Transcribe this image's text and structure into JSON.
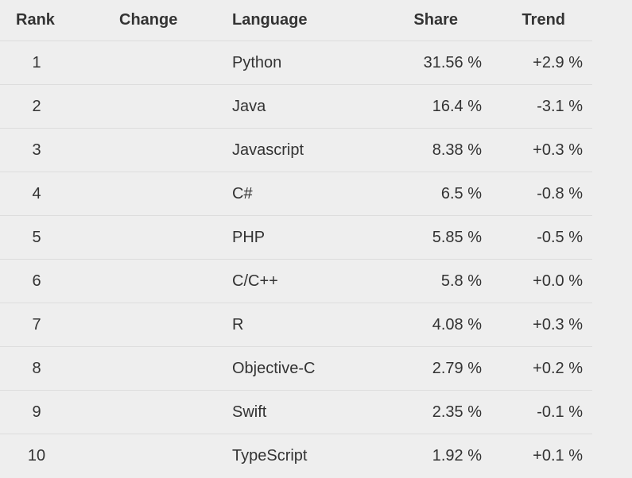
{
  "table": {
    "headers": {
      "rank": "Rank",
      "change": "Change",
      "language": "Language",
      "share": "Share",
      "trend": "Trend"
    },
    "rows": [
      {
        "rank": "1",
        "change": "",
        "language": "Python",
        "share": "31.56 %",
        "trend": "+2.9 %"
      },
      {
        "rank": "2",
        "change": "",
        "language": "Java",
        "share": "16.4 %",
        "trend": "-3.1 %"
      },
      {
        "rank": "3",
        "change": "",
        "language": "Javascript",
        "share": "8.38 %",
        "trend": "+0.3 %"
      },
      {
        "rank": "4",
        "change": "",
        "language": "C#",
        "share": "6.5 %",
        "trend": "-0.8 %"
      },
      {
        "rank": "5",
        "change": "",
        "language": "PHP",
        "share": "5.85 %",
        "trend": "-0.5 %"
      },
      {
        "rank": "6",
        "change": "",
        "language": "C/C++",
        "share": "5.8 %",
        "trend": "+0.0 %"
      },
      {
        "rank": "7",
        "change": "",
        "language": "R",
        "share": "4.08 %",
        "trend": "+0.3 %"
      },
      {
        "rank": "8",
        "change": "",
        "language": "Objective-C",
        "share": "2.79 %",
        "trend": "+0.2 %"
      },
      {
        "rank": "9",
        "change": "",
        "language": "Swift",
        "share": "2.35 %",
        "trend": "-0.1 %"
      },
      {
        "rank": "10",
        "change": "",
        "language": "TypeScript",
        "share": "1.92 %",
        "trend": "+0.1 %"
      }
    ]
  }
}
